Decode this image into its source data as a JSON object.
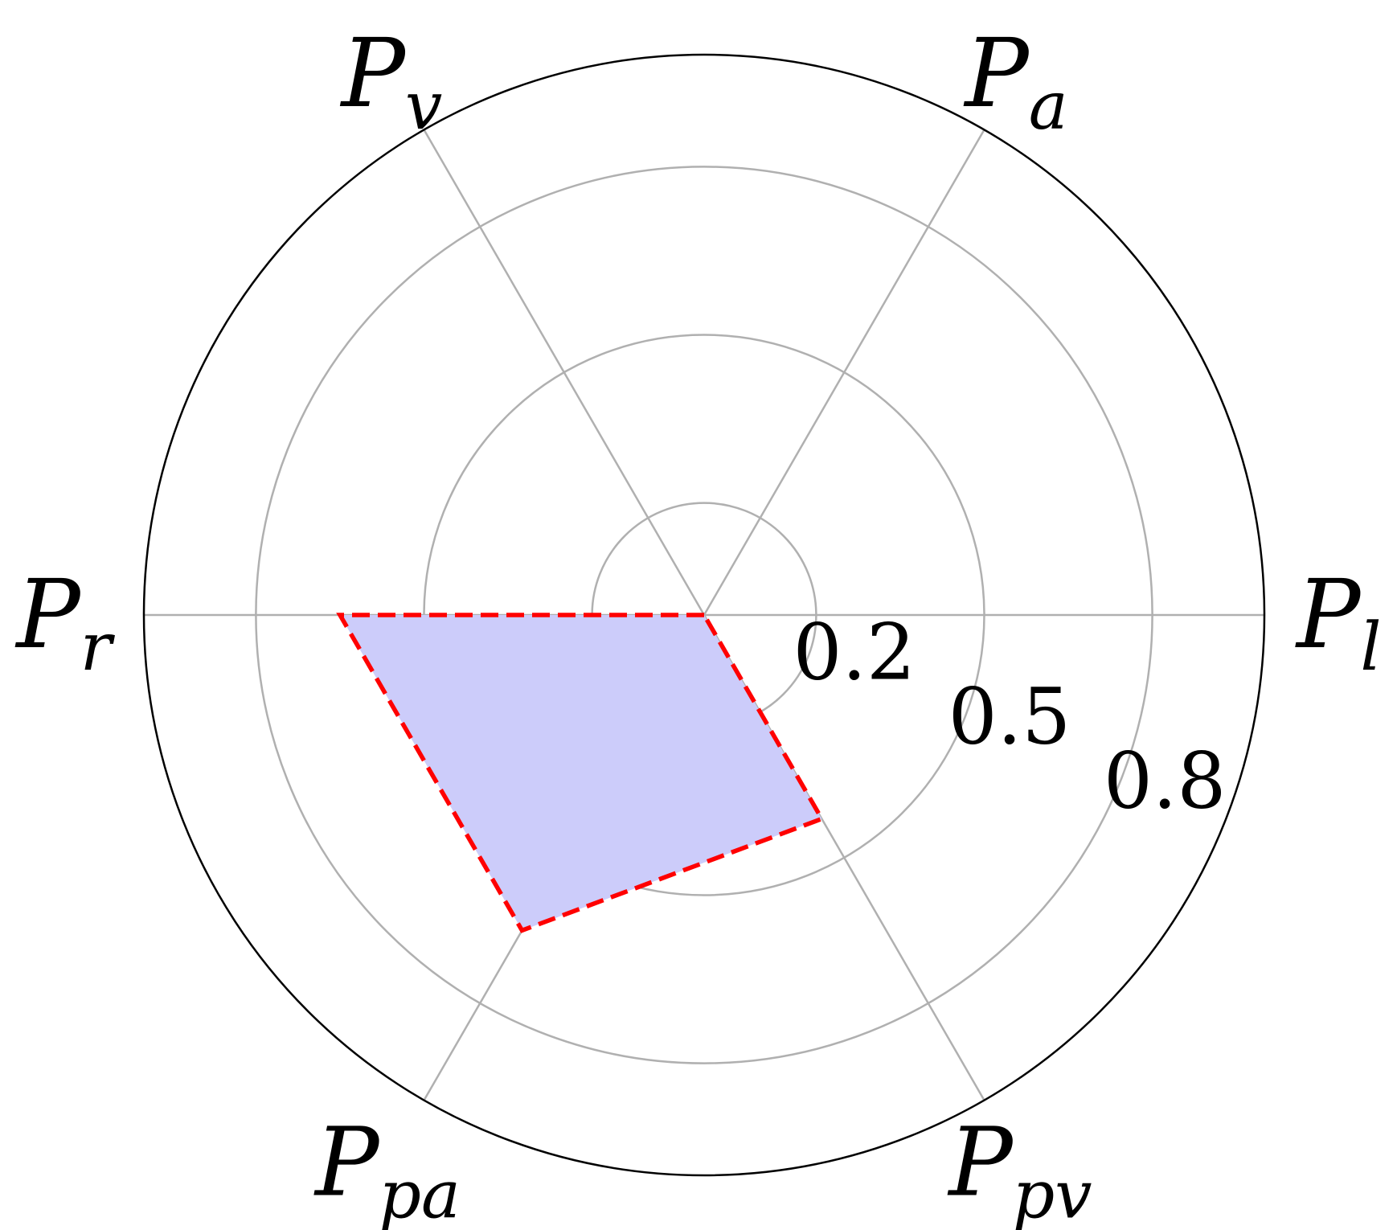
{
  "chart_data": {
    "type": "radar",
    "title": "",
    "axes": [
      {
        "main": "P",
        "sub": "l"
      },
      {
        "main": "P",
        "sub": "a"
      },
      {
        "main": "P",
        "sub": "v"
      },
      {
        "main": "P",
        "sub": "r"
      },
      {
        "main": "P",
        "sub": "pa"
      },
      {
        "main": "P",
        "sub": "pv"
      }
    ],
    "rlim": [
      0,
      1
    ],
    "r_ticks": [
      0.2,
      0.5,
      0.8
    ],
    "r_tick_labels": [
      "0.2",
      "0.5",
      "0.8"
    ],
    "grid": true,
    "series": [
      {
        "values": [
          0.0,
          0.0,
          0.0,
          0.65,
          0.65,
          0.42
        ],
        "fill_color": "#ccccfa",
        "line_color": "#ff0000",
        "line_style": "dashed"
      }
    ],
    "colors": {
      "grid": "#b0b0b0",
      "outer_circle": "#000000",
      "fill": "#ccccfa",
      "line": "#ff0000"
    }
  }
}
